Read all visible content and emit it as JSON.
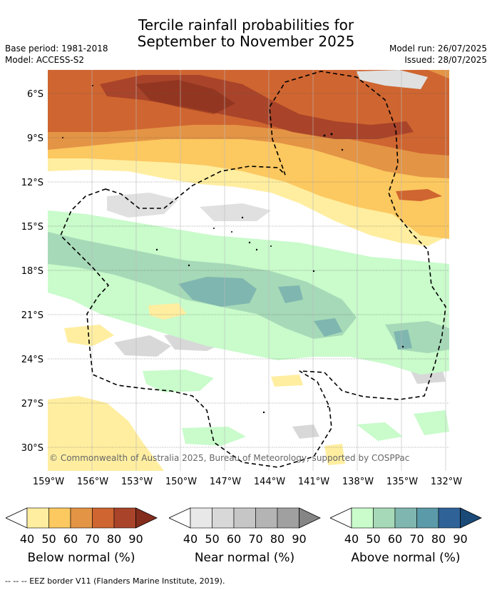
{
  "header": {
    "title_line1": "Tercile rainfall probabilities for",
    "title_line2": "September to November 2025",
    "base_period": "Base period: 1981-2018",
    "model": "Model: ACCESS-S2",
    "model_run": "Model run: 26/07/2025",
    "issued": "Issued: 28/07/2025"
  },
  "map": {
    "lat_labels": [
      "6°S",
      "9°S",
      "12°S",
      "15°S",
      "18°S",
      "21°S",
      "24°S",
      "27°S",
      "30°S"
    ],
    "lon_labels": [
      "159°W",
      "156°W",
      "153°W",
      "150°W",
      "147°W",
      "144°W",
      "141°W",
      "138°W",
      "135°W",
      "132°W"
    ],
    "copyright": "© Commonwealth of Australia 2025, Bureau of Meteorology, supported by COSPPac"
  },
  "legends": [
    {
      "name": "below",
      "title": "Below normal (%)",
      "ticks": [
        "40",
        "50",
        "60",
        "70",
        "80",
        "90"
      ],
      "colors": [
        "#ffeea0",
        "#fcc860",
        "#e39445",
        "#cf6530",
        "#a9442a",
        "#852d1d"
      ]
    },
    {
      "name": "near",
      "title": "Near normal (%)",
      "ticks": [
        "40",
        "50",
        "60",
        "70",
        "80",
        "90"
      ],
      "colors": [
        "#e8e8e8",
        "#d8d8d8",
        "#c6c6c6",
        "#b4b4b4",
        "#a0a0a0",
        "#858585"
      ]
    },
    {
      "name": "above",
      "title": "Above normal (%)",
      "ticks": [
        "40",
        "50",
        "60",
        "70",
        "80",
        "90"
      ],
      "colors": [
        "#c9fbcb",
        "#a6d9b7",
        "#7fb6b0",
        "#5b9aa8",
        "#2f6398",
        "#1a4a78"
      ]
    }
  ],
  "footnote": "--  --  -- EEZ border V11 (Flanders Marine Institute, 2019)."
}
